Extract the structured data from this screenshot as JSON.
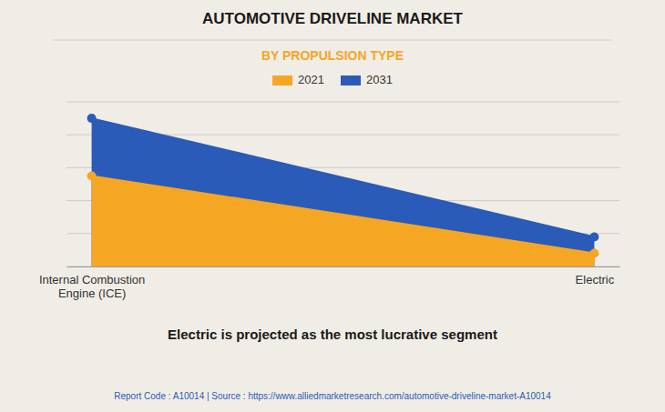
{
  "chart_data": {
    "type": "area",
    "title": "AUTOMOTIVE DRIVELINE MARKET",
    "subtitle": "BY PROPULSION TYPE",
    "categories": [
      "Internal Combustion\nEngine (ICE)",
      "Electric"
    ],
    "series": [
      {
        "name": "2021",
        "color": "#F5A623",
        "values": [
          55,
          8
        ]
      },
      {
        "name": "2031",
        "color": "#2B5BB8",
        "values": [
          90,
          18
        ]
      }
    ],
    "ylim": [
      0,
      100
    ],
    "yticks": [
      0,
      20,
      40,
      60,
      80,
      100
    ],
    "grid": true,
    "tick_labels": "x",
    "legend": "top",
    "marker": "circle",
    "annotations": [
      "Electric is projected as the most lucrative segment",
      "Report Code : A10014  |  Source : https://www.alliedmarketresearch.com/automotive-driveline-market-A10014"
    ]
  }
}
